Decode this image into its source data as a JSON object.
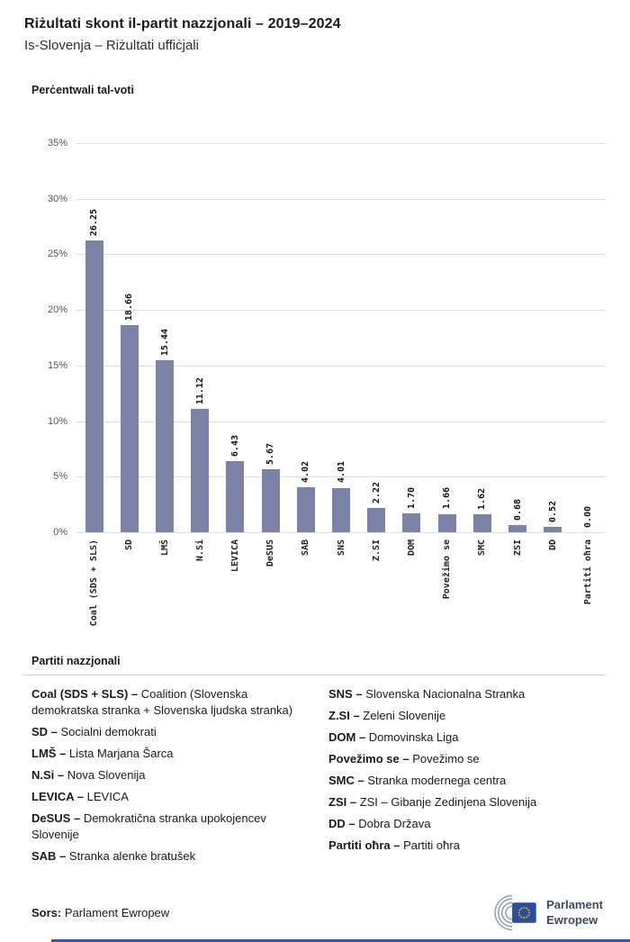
{
  "header": {
    "title": "Riżultati skont il-partit nazzjonali – 2019–2024",
    "subtitle": "Is-Slovenja – Riżultati uffiċjali"
  },
  "chart_data": {
    "type": "bar",
    "title": "Perċentwali tal-voti",
    "categories": [
      "Coal (SDS + SLS)",
      "SD",
      "LMŠ",
      "N.Si",
      "LEVICA",
      "DeSUS",
      "SAB",
      "SNS",
      "Z.SI",
      "DOM",
      "Povežimo se",
      "SMC",
      "ZSI",
      "DD",
      "Partiti oħra"
    ],
    "values": [
      26.25,
      18.66,
      15.44,
      11.12,
      6.43,
      5.67,
      4.02,
      4.01,
      2.22,
      1.7,
      1.66,
      1.62,
      0.68,
      0.52,
      0.0
    ],
    "value_labels": [
      "26.25",
      "18.66",
      "15.44",
      "11.12",
      "6.43",
      "5.67",
      "4.02",
      "4.01",
      "2.22",
      "1.70",
      "1.66",
      "1.62",
      "0.68",
      "0.52",
      "0.00"
    ],
    "ytick_labels": [
      "35%",
      "30%",
      "25%",
      "20%",
      "15%",
      "10%",
      "5%",
      "0%"
    ],
    "ylim": [
      0,
      35
    ],
    "grid": true,
    "legend_position": "none",
    "bar_color": "#7b83a7"
  },
  "legend": {
    "heading": "Partiti nazzjonali",
    "left": [
      {
        "name": "Coal (SDS + SLS) –",
        "desc": "Coalition (Slovenska demokratska stranka + Slovenska ljudska stranka)"
      },
      {
        "name": "SD –",
        "desc": "Socialni demokrati"
      },
      {
        "name": "LMŠ –",
        "desc": "Lista Marjana Šarca"
      },
      {
        "name": "N.Si –",
        "desc": "Nova Slovenija"
      },
      {
        "name": "LEVICA –",
        "desc": "LEVICA"
      },
      {
        "name": "DeSUS –",
        "desc": "Demokratična stranka upokojencev Slovenije"
      },
      {
        "name": "SAB –",
        "desc": "Stranka alenke bratušek"
      }
    ],
    "right": [
      {
        "name": "SNS –",
        "desc": "Slovenska Nacionalna Stranka"
      },
      {
        "name": "Z.SI –",
        "desc": "Zeleni Slovenije"
      },
      {
        "name": "DOM –",
        "desc": "Domovinska Liga"
      },
      {
        "name": "Povežimo se –",
        "desc": "Povežimo se"
      },
      {
        "name": "SMC –",
        "desc": "Stranka modernega centra"
      },
      {
        "name": "ZSI –",
        "desc": "ZSI – Gibanje Zedinjena Slovenija"
      },
      {
        "name": "DD –",
        "desc": "Dobra Država"
      },
      {
        "name": "Partiti oħra –",
        "desc": "Partiti oħra"
      }
    ]
  },
  "footer": {
    "source_label": "Sors:",
    "source_value": " Parlament Ewropew",
    "logo_line1": "Parlament",
    "logo_line2": "Ewropew"
  },
  "colors": {
    "bar": "#7b83a7",
    "gridline": "#dddddd",
    "accent_bottom_bar": "#3a57a7",
    "flag_blue": "#2b4d9e",
    "star_yellow": "#f5c400"
  }
}
